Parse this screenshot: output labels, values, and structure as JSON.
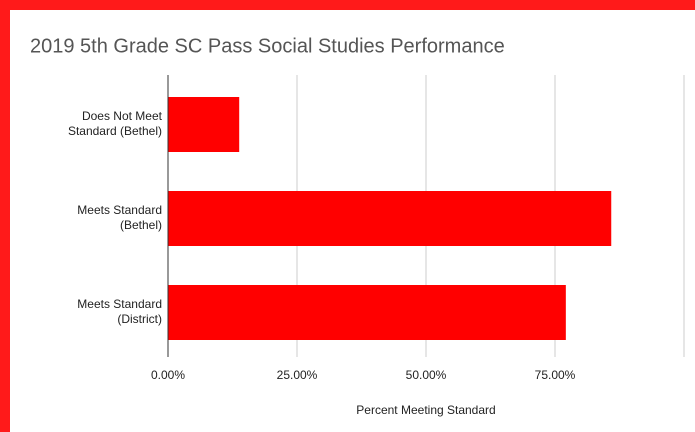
{
  "chart_data": {
    "type": "hbar",
    "title": "2019 5th Grade SC Pass Social Studies Performance",
    "categories": [
      "Does Not Meet Standard (Bethel)",
      "Meets Standard (Bethel)",
      "Meets Standard (District)"
    ],
    "values": [
      13.8,
      85.9,
      77.1
    ],
    "color": "#ff0000",
    "xlabel": "Percent Meeting Standard",
    "xlim": [
      0,
      100
    ],
    "xticks": [
      {
        "value": 0,
        "label": "0.00%"
      },
      {
        "value": 25,
        "label": "25.00%"
      },
      {
        "value": 50,
        "label": "50.00%"
      },
      {
        "value": 75,
        "label": "75.00%"
      }
    ],
    "grid": true
  }
}
